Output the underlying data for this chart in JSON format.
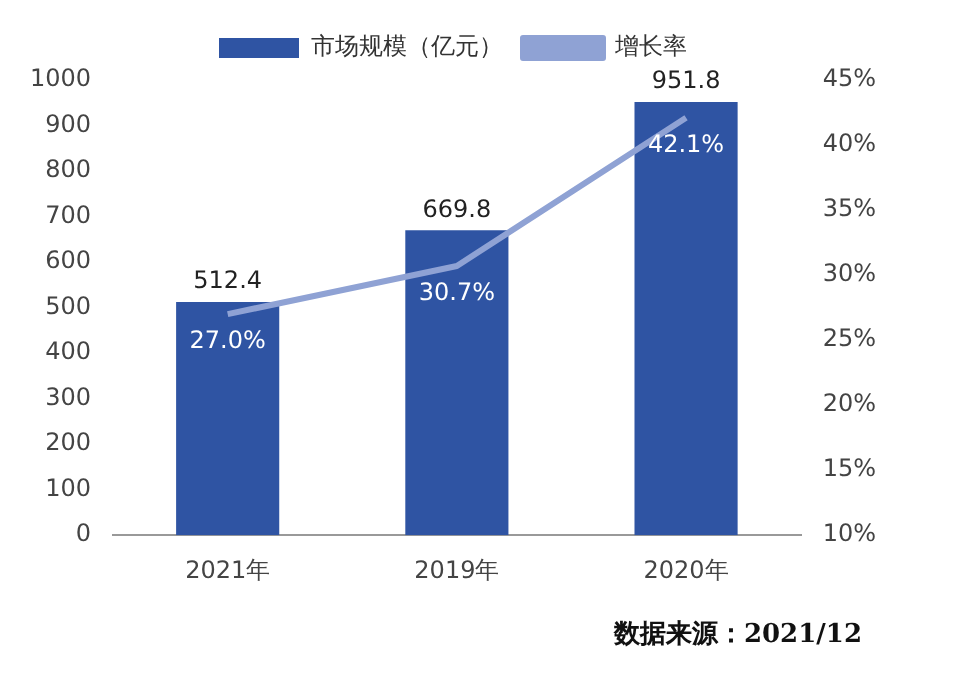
{
  "chart_data": {
    "type": "bar",
    "categories": [
      "2021年",
      "2019年",
      "2020年"
    ],
    "series": [
      {
        "name": "市场规模（亿元）",
        "color": "#2f54a3",
        "values": [
          512.4,
          669.8,
          951.8
        ],
        "value_labels": [
          "512.4",
          "669.8",
          "951.8"
        ]
      },
      {
        "name": "增长率",
        "type": "line",
        "axis": "y2",
        "color": "#8fa2d4",
        "values": [
          27.0,
          30.7,
          42.1
        ],
        "value_labels": [
          "27.0%",
          "30.7%",
          "42.1%"
        ]
      }
    ],
    "ylim": [
      0,
      1000
    ],
    "yticks": [
      0,
      100,
      200,
      300,
      400,
      500,
      600,
      700,
      800,
      900,
      1000
    ],
    "y2lim": [
      10,
      45
    ],
    "y2ticks": [
      {
        "value": 10,
        "label": "10%"
      },
      {
        "value": 15,
        "label": "15%"
      },
      {
        "value": 20,
        "label": "20%"
      },
      {
        "value": 25,
        "label": "25%"
      },
      {
        "value": 30,
        "label": "30%"
      },
      {
        "value": 35,
        "label": "35%"
      },
      {
        "value": 40,
        "label": "40%"
      },
      {
        "value": 45,
        "label": "45%"
      }
    ],
    "grid": false,
    "legend": "top",
    "marker": "none",
    "line_style": "solid",
    "annotations": [
      "数据来源：2021/12"
    ]
  }
}
